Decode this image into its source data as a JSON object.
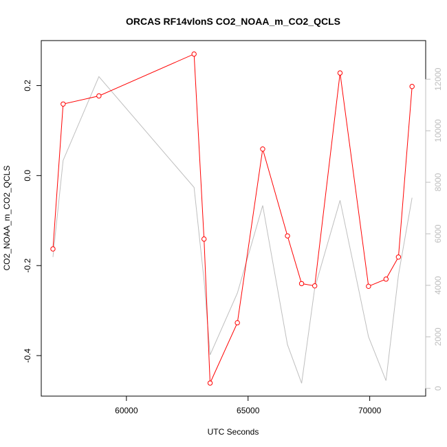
{
  "chart_data": {
    "type": "line",
    "title": "ORCAS RF14vlonS CO2_NOAA_m_CO2_QCLS",
    "xlabel": "UTC Seconds",
    "ylabel": "CO2_NOAA_m_CO2_QCLS",
    "xlim": [
      56500,
      72300
    ],
    "ylim": [
      -0.49,
      0.3
    ],
    "ylim_right": [
      -300,
      13500
    ],
    "x_ticks": [
      60000,
      65000,
      70000
    ],
    "y_ticks": [
      -0.4,
      -0.2,
      0.0,
      0.2
    ],
    "y_tick_labels": [
      "-0.4",
      "-0.2",
      "0.0",
      "0.2"
    ],
    "y2_ticks": [
      0,
      2000,
      4000,
      6000,
      8000,
      10000,
      12000
    ],
    "grid": false,
    "series": [
      {
        "axis": "left",
        "color": "#ff0000",
        "marker": "open-circle",
        "x": [
          56980,
          57400,
          58870,
          62780,
          63190,
          63440,
          64560,
          65600,
          66620,
          67200,
          67740,
          68780,
          69950,
          70670,
          71180,
          71740
        ],
        "y": [
          -0.163,
          0.159,
          0.177,
          0.27,
          -0.141,
          -0.461,
          -0.327,
          0.059,
          -0.134,
          -0.24,
          -0.245,
          0.228,
          -0.246,
          -0.23,
          -0.181,
          0.198
        ]
      },
      {
        "axis": "right",
        "color": "#bebebe",
        "marker": "none",
        "x": [
          56980,
          57400,
          58870,
          62780,
          63190,
          63440,
          64560,
          65600,
          66620,
          67200,
          67740,
          68780,
          69950,
          70670,
          71180,
          71740
        ],
        "y": [
          5100,
          8850,
          12100,
          7800,
          4200,
          1300,
          3700,
          7100,
          1700,
          200,
          3900,
          7300,
          2000,
          300,
          4400,
          7400
        ]
      }
    ]
  }
}
